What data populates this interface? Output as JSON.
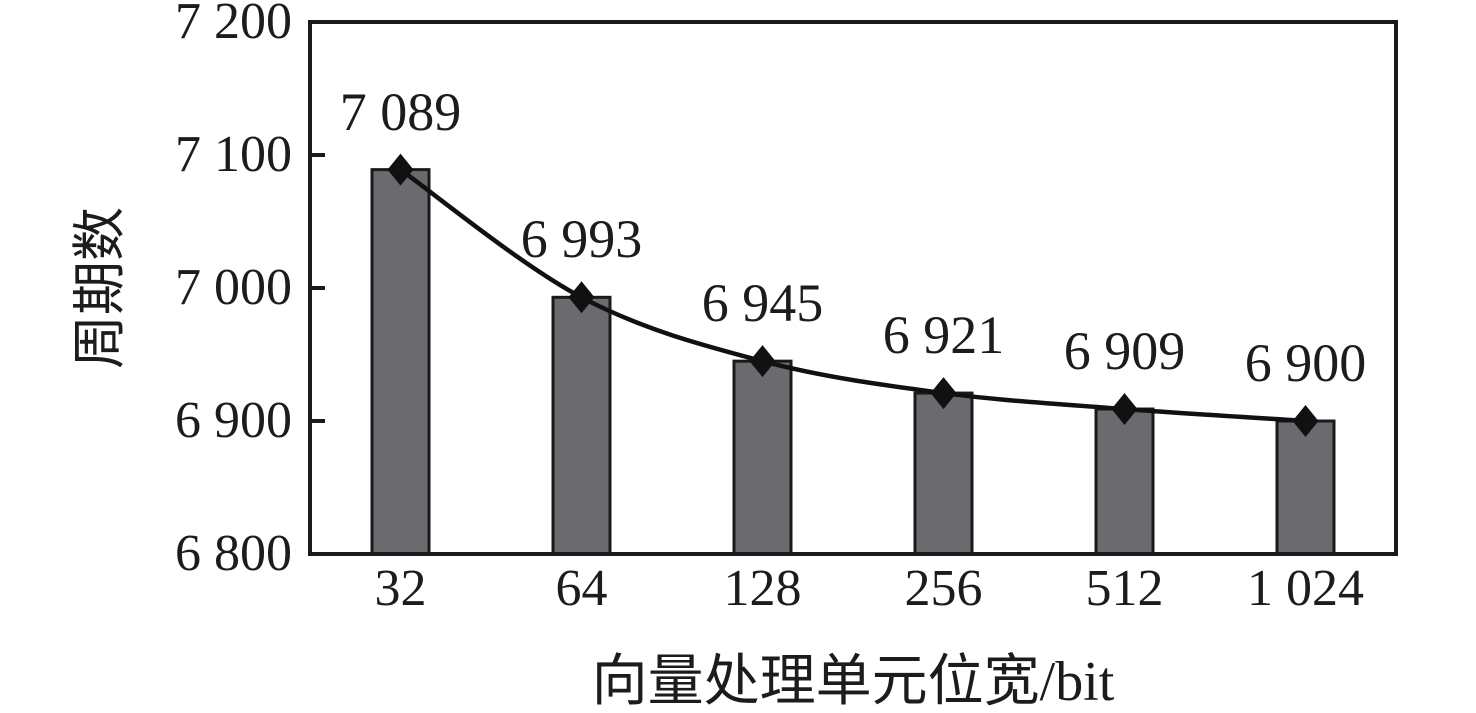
{
  "chart_data": {
    "type": "bar",
    "overlay_series": "line",
    "title": "",
    "xlabel": "向量处理单元位宽/bit",
    "ylabel": "周期数",
    "categories": [
      "32",
      "64",
      "128",
      "256",
      "512",
      "1 024"
    ],
    "values": [
      7089,
      6993,
      6945,
      6921,
      6909,
      6900
    ],
    "value_labels": [
      "7 089",
      "6 993",
      "6 945",
      "6 921",
      "6 909",
      "6 900"
    ],
    "ylim": [
      6800,
      7200
    ],
    "yticks": [
      6800,
      6900,
      7000,
      7100,
      7200
    ],
    "ytick_labels": [
      "6 800",
      "6 900",
      "7 000",
      "7 100",
      "7 200"
    ],
    "grid": false,
    "legend": null,
    "marker": "diamond",
    "colors": {
      "bar_fill": "#6b6b6f",
      "bar_border": "#1a1a1a",
      "line": "#111111",
      "marker": "#111111",
      "frame": "#1a1a1a",
      "text": "#1c1c1c"
    }
  }
}
